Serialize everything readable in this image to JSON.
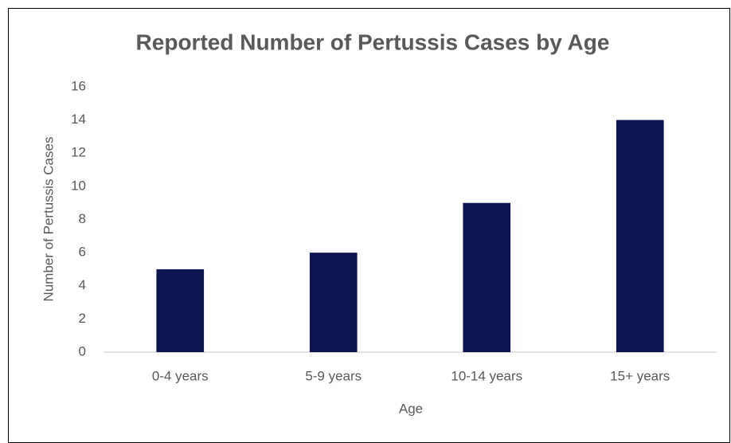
{
  "chart_data": {
    "type": "bar",
    "title": "Reported Number of Pertussis Cases by Age",
    "x_label": "Age",
    "y_label": "Number of Pertussis Cases",
    "categories": [
      "0-4 years",
      "5-9 years",
      "10-14 years",
      "15+ years"
    ],
    "values": [
      5,
      6,
      9,
      14
    ],
    "color": "#0c1450",
    "ylim": [
      0,
      16
    ],
    "yticks": [
      0,
      2,
      4,
      6,
      8,
      10,
      12,
      14,
      16
    ],
    "grid": false
  }
}
